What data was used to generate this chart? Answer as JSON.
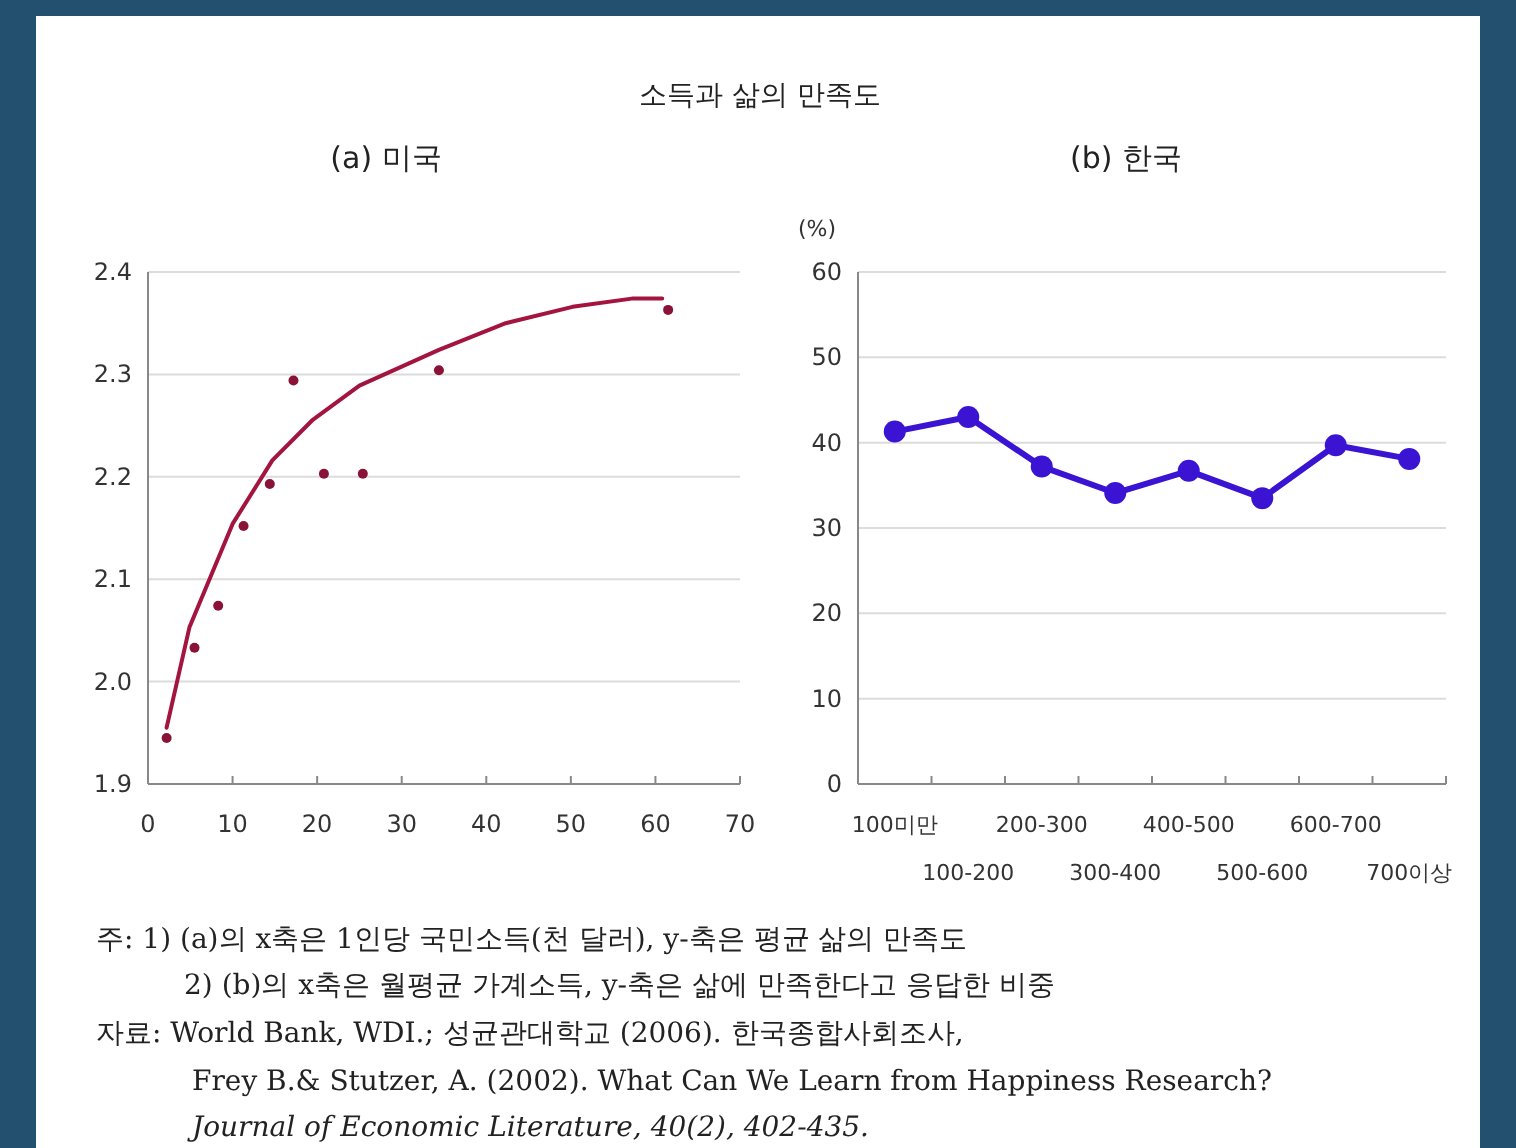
{
  "chart_data": [
    {
      "type": "scatter",
      "title": "(a) 미국",
      "xlim": [
        0,
        70
      ],
      "xticks": [
        0,
        10,
        20,
        30,
        40,
        50,
        60,
        70
      ],
      "ylim": [
        1.9,
        2.4
      ],
      "yticks": [
        {
          "value": 1.9,
          "label": "1.9"
        },
        {
          "value": 2.0,
          "label": "2.0"
        },
        {
          "value": 2.1,
          "label": "2.1"
        },
        {
          "value": 2.2,
          "label": "2.2"
        },
        {
          "value": 2.3,
          "label": "2.3"
        },
        {
          "value": 2.4,
          "label": "2.4"
        }
      ],
      "grid": "y",
      "series": [
        {
          "type": "scatter",
          "marker": "circle",
          "color": "#8a1236",
          "x": [
            2.2,
            5.5,
            8.3,
            11.3,
            14.4,
            17.2,
            20.8,
            25.4,
            34.4,
            61.5
          ],
          "values": [
            1.945,
            2.033,
            2.074,
            2.152,
            2.193,
            2.294,
            2.203,
            2.203,
            2.304,
            2.363
          ]
        },
        {
          "type": "line",
          "marker": "none",
          "color": "#a3143f",
          "x": [
            2.2,
            4.9,
            10,
            14.7,
            19.4,
            25,
            34.4,
            42.3,
            50.2,
            57.2,
            60.8
          ],
          "values": [
            1.955,
            2.053,
            2.154,
            2.216,
            2.255,
            2.289,
            2.324,
            2.35,
            2.366,
            2.374,
            2.374
          ]
        }
      ],
      "annotations": [
        "소득과 삶의 만족도",
        "주: 1) (a)의 x축은 1인당 국민소득(천 달러), y-축은 평균 삶의 만족도",
        "2) (b)의 x축은 월평균 가계소득, y-축은 삶에 만족한다고 응답한 비중",
        "자료: World Bank, WDI.; 성균관대학교 (2006). 한국종합사회조사,",
        "Frey B.& Stutzer, A. (2002). What Can We Learn from Happiness Research?",
        "Journal of Economic Literature, 40(2), 402-435."
      ]
    },
    {
      "type": "line",
      "title": "(b) 한국",
      "ylabel": "(%)",
      "categories": [
        "100미만",
        "100-200",
        "200-300",
        "300-400",
        "400-500",
        "500-600",
        "600-700",
        "700이상"
      ],
      "ylim": [
        0,
        60
      ],
      "yticks": [
        0,
        10,
        20,
        30,
        40,
        50,
        60
      ],
      "grid": "y",
      "marker": "circle",
      "series": [
        {
          "color": "#3a14d2",
          "values": [
            41.3,
            43.0,
            37.2,
            34.1,
            36.7,
            33.5,
            39.7,
            38.1
          ]
        }
      ]
    }
  ]
}
